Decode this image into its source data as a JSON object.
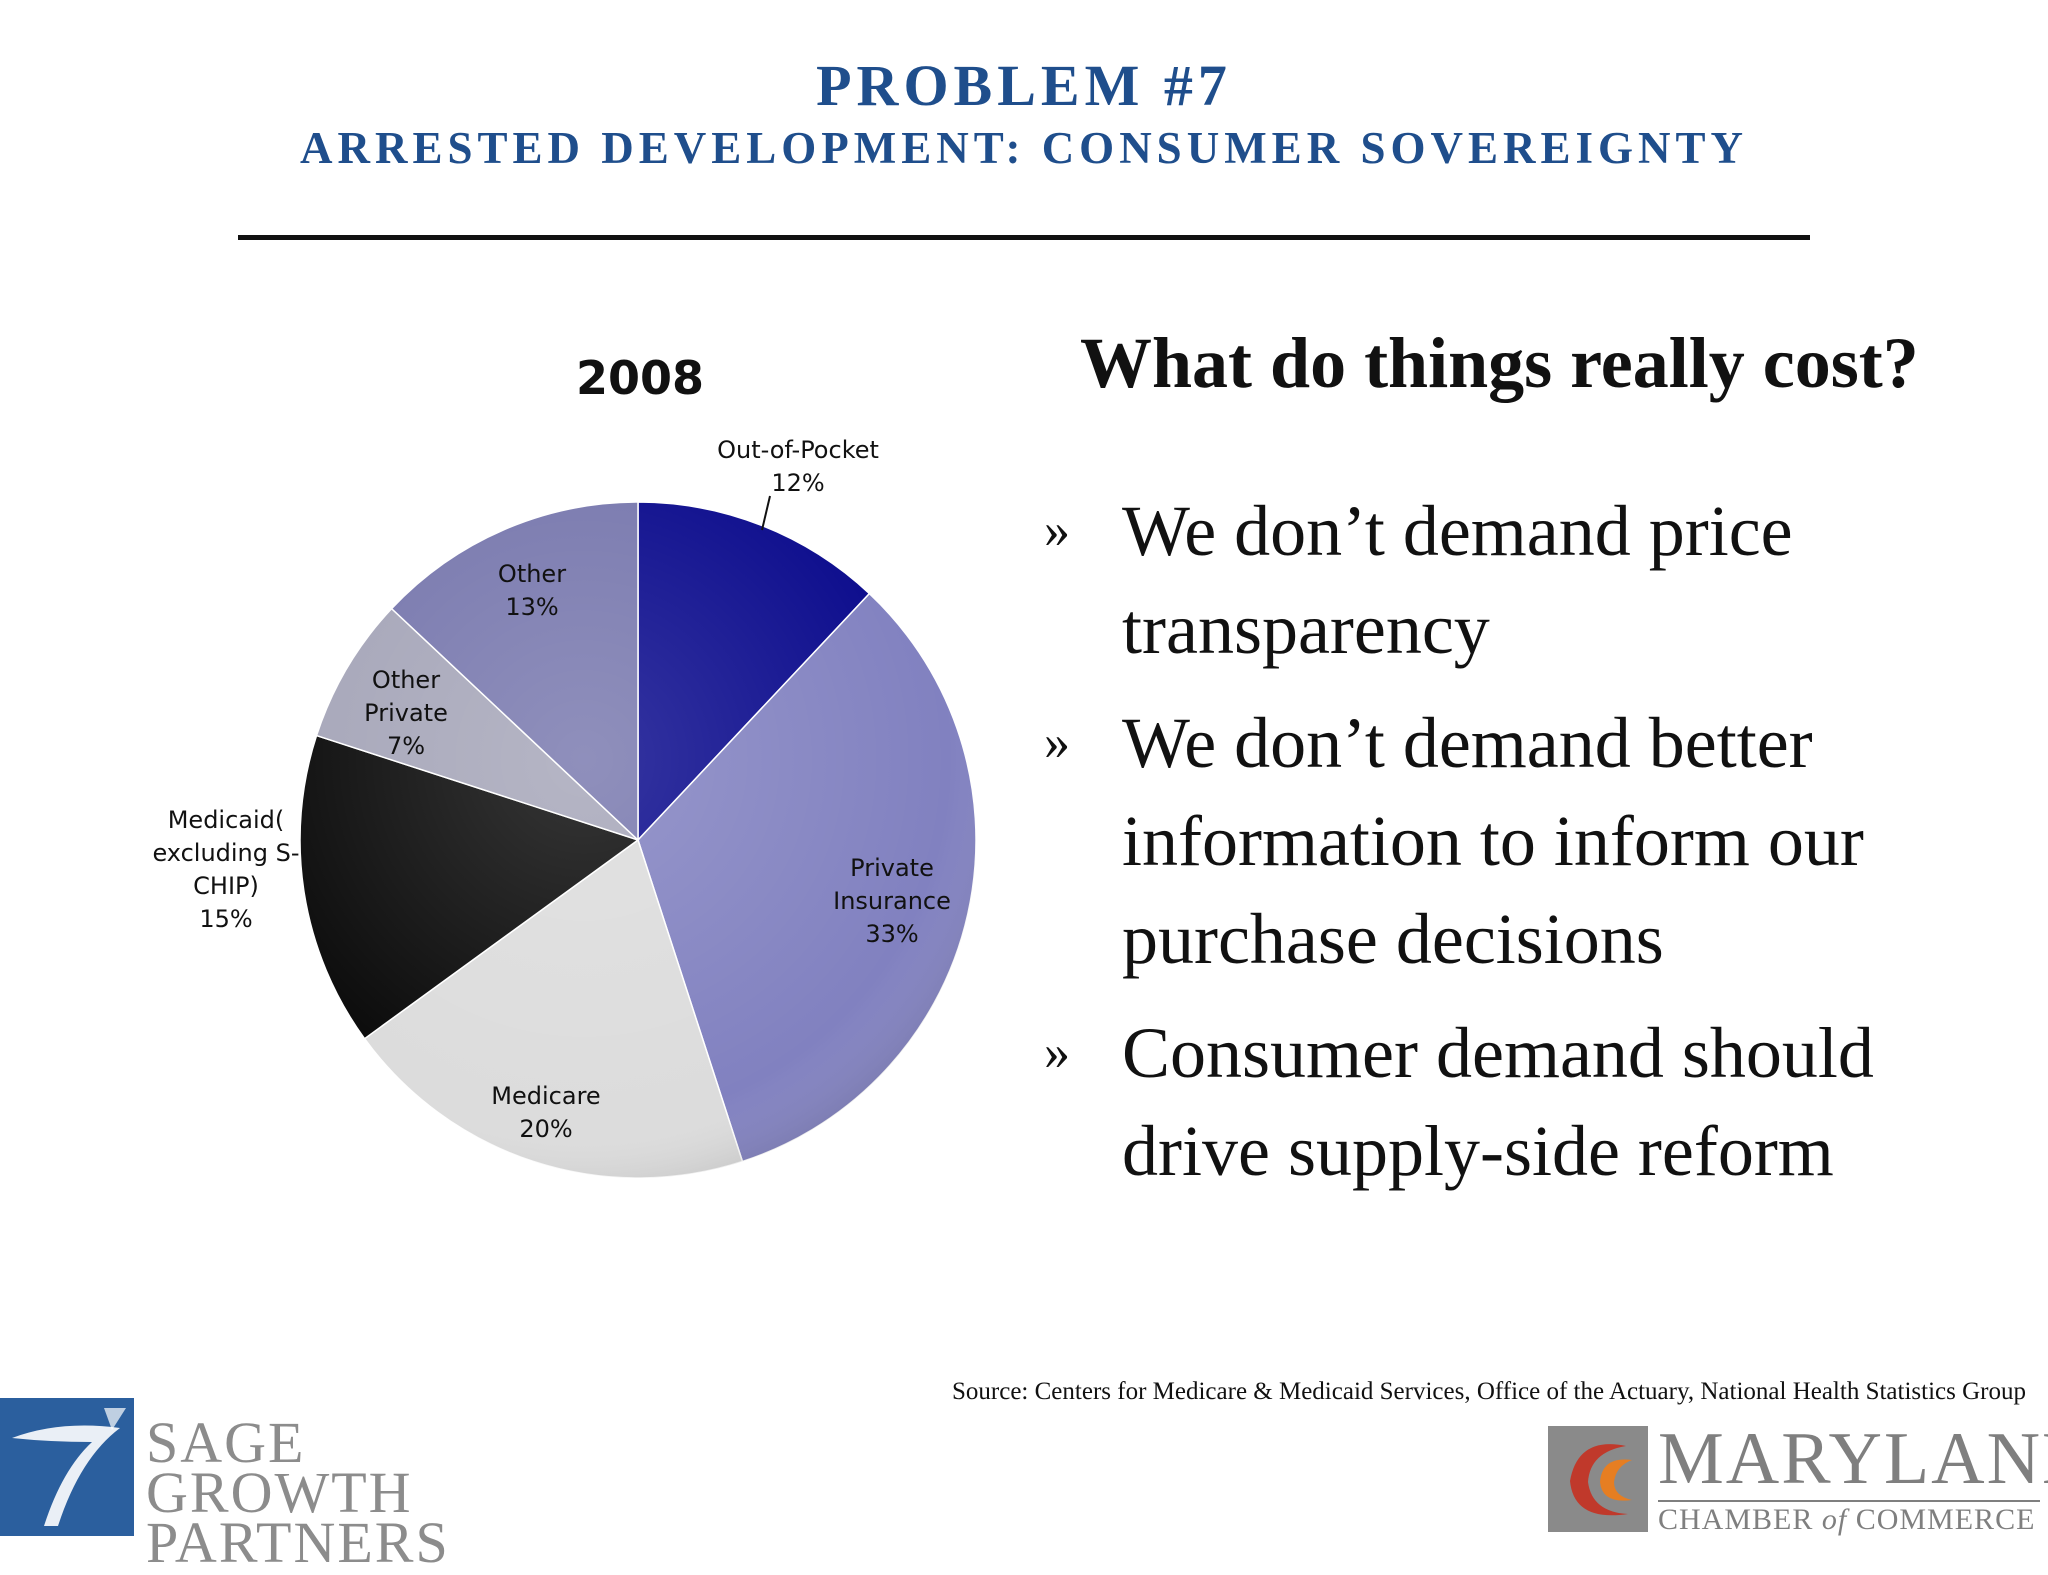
{
  "slide": {
    "title": "PROBLEM #7",
    "subtitle": "ARRESTED DEVELOPMENT: CONSUMER SOVEREIGNTY",
    "heading": "What do things really cost?",
    "bullet_marker": "»",
    "bullets": [
      "We don’t demand price transparency",
      "We don’t demand better information to inform our purchase decisions",
      "Consumer demand should drive supply-side reform"
    ],
    "source": "Source: Centers for Medicare & Medicaid Services, Office of the Actuary, National Health Statistics Group"
  },
  "logos": {
    "left": {
      "line1": "SAGE GROWTH",
      "line2": "PARTNERS",
      "mark": "7"
    },
    "right": {
      "line1": "MARYLAND",
      "line2_a": "CHAMBER ",
      "line2_of": "of",
      "line2_b": " COMMERCE",
      "mark": "C"
    }
  },
  "chart_data": {
    "type": "pie",
    "title": "2008",
    "slices": [
      {
        "label": "Out-of-Pocket",
        "value": 12,
        "display": "12%",
        "color": "#0a0a8c"
      },
      {
        "label": "Private Insurance",
        "value": 33,
        "display": "33%",
        "color": "#8181c0"
      },
      {
        "label": "Medicare",
        "value": 20,
        "display": "20%",
        "color": "#dcdcdc"
      },
      {
        "label": "Medicaid( excluding S-CHIP)",
        "value": 15,
        "display": "15%",
        "color": "#0b0b0b"
      },
      {
        "label": "Other Private",
        "value": 7,
        "display": "7%",
        "color": "#a5a5b8"
      },
      {
        "label": "Other",
        "value": 13,
        "display": "13%",
        "color": "#7777ad"
      }
    ],
    "start_angle_deg": 0,
    "direction": "clockwise"
  }
}
